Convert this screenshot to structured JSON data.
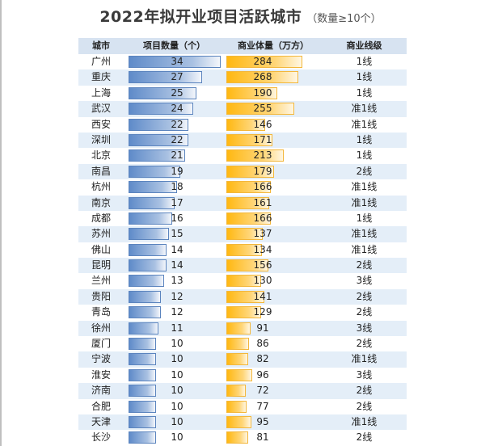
{
  "header": {
    "title": "2022年拟开业项目活跃城市",
    "subtitle": "（数量≥10个）"
  },
  "colors": {
    "header_bg": "#d7e3f1",
    "alt_row_bg": "#e4eef8",
    "count_bar": "#5f8bc9",
    "area_bar": "#ffb812"
  },
  "chart_data": {
    "type": "table",
    "title": "2022年拟开业项目活跃城市",
    "subtitle": "（数量≥10个）",
    "columns": [
      "城市",
      "项目数量（个）",
      "商业体量（万方）",
      "商业线级"
    ],
    "count_max": 34,
    "area_max": 284,
    "rows": [
      {
        "city": "广州",
        "count": 34,
        "area": 284,
        "tier": "1线"
      },
      {
        "city": "重庆",
        "count": 27,
        "area": 268,
        "tier": "1线"
      },
      {
        "city": "上海",
        "count": 25,
        "area": 190,
        "tier": "1线"
      },
      {
        "city": "武汉",
        "count": 24,
        "area": 255,
        "tier": "准1线"
      },
      {
        "city": "西安",
        "count": 22,
        "area": 146,
        "tier": "准1线"
      },
      {
        "city": "深圳",
        "count": 22,
        "area": 171,
        "tier": "1线"
      },
      {
        "city": "北京",
        "count": 21,
        "area": 213,
        "tier": "1线"
      },
      {
        "city": "南昌",
        "count": 19,
        "area": 179,
        "tier": "2线"
      },
      {
        "city": "杭州",
        "count": 18,
        "area": 166,
        "tier": "准1线"
      },
      {
        "city": "南京",
        "count": 17,
        "area": 161,
        "tier": "准1线"
      },
      {
        "city": "成都",
        "count": 16,
        "area": 166,
        "tier": "1线"
      },
      {
        "city": "苏州",
        "count": 15,
        "area": 137,
        "tier": "准1线"
      },
      {
        "city": "佛山",
        "count": 14,
        "area": 134,
        "tier": "准1线"
      },
      {
        "city": "昆明",
        "count": 14,
        "area": 156,
        "tier": "2线"
      },
      {
        "city": "兰州",
        "count": 13,
        "area": 130,
        "tier": "3线"
      },
      {
        "city": "贵阳",
        "count": 12,
        "area": 141,
        "tier": "2线"
      },
      {
        "city": "青岛",
        "count": 12,
        "area": 129,
        "tier": "2线"
      },
      {
        "city": "徐州",
        "count": 11,
        "area": 91,
        "tier": "3线"
      },
      {
        "city": "厦门",
        "count": 10,
        "area": 86,
        "tier": "2线"
      },
      {
        "city": "宁波",
        "count": 10,
        "area": 82,
        "tier": "准1线"
      },
      {
        "city": "淮安",
        "count": 10,
        "area": 96,
        "tier": "3线"
      },
      {
        "city": "济南",
        "count": 10,
        "area": 72,
        "tier": "2线"
      },
      {
        "city": "合肥",
        "count": 10,
        "area": 77,
        "tier": "2线"
      },
      {
        "city": "天津",
        "count": 10,
        "area": 95,
        "tier": "准1线"
      },
      {
        "city": "长沙",
        "count": 10,
        "area": 81,
        "tier": "2线"
      }
    ]
  }
}
